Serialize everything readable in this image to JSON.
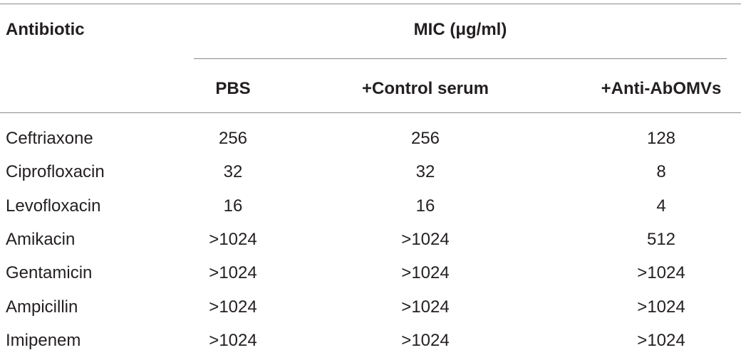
{
  "table": {
    "header": {
      "row_label": "Antibiotic",
      "group": "MIC (μg/ml)",
      "columns": [
        "PBS",
        "+Control serum",
        "+Anti-AbOMVs"
      ]
    },
    "rows": [
      [
        "Ceftriaxone",
        "256",
        "256",
        "128"
      ],
      [
        "Ciprofloxacin",
        "32",
        "32",
        "8"
      ],
      [
        "Levofloxacin",
        "16",
        "16",
        "4"
      ],
      [
        "Amikacin",
        ">1024",
        ">1024",
        "512"
      ],
      [
        "Gentamicin",
        ">1024",
        ">1024",
        ">1024"
      ],
      [
        "Ampicillin",
        ">1024",
        ">1024",
        ">1024"
      ],
      [
        "Imipenem",
        ">1024",
        ">1024",
        ">1024"
      ]
    ]
  }
}
